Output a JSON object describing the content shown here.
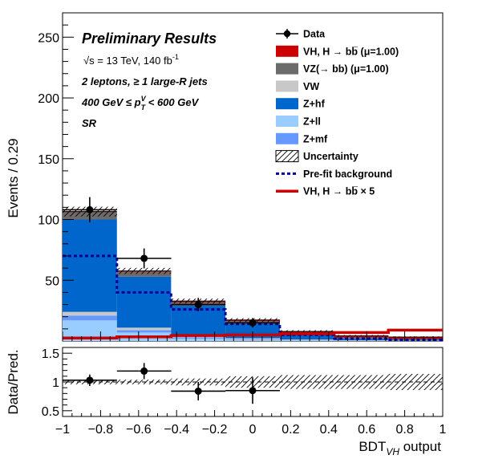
{
  "annotations": {
    "title": "Preliminary Results",
    "energy_prefix": "√s = 13 TeV, 140 fb",
    "energy_sup": "-1",
    "selection": "2 leptons, ≥ 1 large-R jets",
    "pt_left": "400 GeV  ≤ p",
    "pt_sup": "V",
    "pt_sub": "T",
    "pt_right": " < 600 GeV",
    "region": "SR"
  },
  "legend": [
    {
      "label": "Data",
      "kind": "data"
    },
    {
      "label": "VH, H  → bb̅  (μ=1.00)",
      "kind": "fill",
      "color": "#cc0000"
    },
    {
      "label": "VZ(→ bb) (μ=1.00)",
      "kind": "fill",
      "color": "#6b6b6b"
    },
    {
      "label": "VW",
      "kind": "fill",
      "color": "#c8c8c8"
    },
    {
      "label": "Z+hf",
      "kind": "fill",
      "color": "#0066cc"
    },
    {
      "label": "Z+ll",
      "kind": "fill",
      "color": "#99ccff"
    },
    {
      "label": "Z+mf",
      "kind": "fill",
      "color": "#6699ff"
    },
    {
      "label": "Uncertainty",
      "kind": "hatch"
    },
    {
      "label": "Pre-fit background",
      "kind": "dashline",
      "color": "#000099"
    },
    {
      "label": "VH, H  → bb̅  × 5",
      "kind": "line",
      "color": "#cc0000"
    }
  ],
  "chart_data": [
    {
      "type": "bar",
      "subtype": "stacked-histogram",
      "xlabel_main": "BDT",
      "xlabel_sub": "VH",
      "xlabel_tail": " output",
      "ylabel": "Events / 0.29",
      "xlim": [
        -1,
        1
      ],
      "ylim": [
        0,
        270
      ],
      "yticks": [
        50,
        100,
        150,
        200,
        250
      ],
      "bin_edges": [
        -1.0,
        -0.714,
        -0.429,
        -0.143,
        0.143,
        0.429,
        0.714,
        1.0
      ],
      "stack_order": [
        "Z+ll",
        "Z+mf",
        "VW",
        "Z+hf",
        "VZ(→ bb)",
        "VH, H → bb̅"
      ],
      "series": [
        {
          "name": "Z+ll",
          "color": "#99ccff",
          "values": [
            17,
            7,
            2,
            0.8,
            0.5,
            0.3,
            0.2
          ]
        },
        {
          "name": "Z+mf",
          "color": "#6699ff",
          "values": [
            4,
            2,
            1,
            0.5,
            0.2,
            0.1,
            0.1
          ]
        },
        {
          "name": "VW",
          "color": "#c8c8c8",
          "values": [
            3,
            2,
            2,
            1,
            0.5,
            0.3,
            0.2
          ]
        },
        {
          "name": "Z+hf",
          "color": "#0066cc",
          "values": [
            76,
            42,
            24,
            12,
            4,
            1.5,
            0.6
          ]
        },
        {
          "name": "VZ(→ bb)",
          "color": "#6b6b6b",
          "values": [
            6,
            4,
            3,
            2,
            1.5,
            0.8,
            0.4
          ]
        },
        {
          "name": "VH, H → bb̅",
          "color": "#cc0000",
          "values": [
            0.5,
            0.7,
            0.9,
            1.0,
            1.2,
            1.4,
            1.8
          ]
        }
      ],
      "uncertainty_halfwidth": [
        4,
        2.5,
        2,
        1.5,
        1,
        0.6,
        0.5
      ],
      "prefit_background": [
        70,
        40,
        26,
        14,
        5,
        2,
        1
      ],
      "signal_x5": [
        2.5,
        3.5,
        4.5,
        5,
        6,
        7,
        9
      ],
      "data": {
        "x": [
          -0.857,
          -0.571,
          -0.286,
          0.0
        ],
        "xerr": [
          0.143,
          0.143,
          0.143,
          0.143
        ],
        "y": [
          108,
          68,
          30,
          15
        ],
        "yerr": [
          10.4,
          8.2,
          5.5,
          3.9
        ]
      }
    },
    {
      "type": "scatter",
      "subtype": "ratio",
      "ylabel": "Data/Pred.",
      "xlim": [
        -1,
        1
      ],
      "ylim": [
        0.4,
        1.6
      ],
      "yticks": [
        0.5,
        1,
        1.5
      ],
      "xticks": [
        -1,
        -0.8,
        -0.6,
        -0.4,
        -0.2,
        0,
        0.2,
        0.4,
        0.6,
        0.8,
        1
      ],
      "xtick_labels": [
        "−1",
        "−0.8",
        "−0.6",
        "−0.4",
        "−0.2",
        "0",
        "0.2",
        "0.4",
        "0.6",
        "0.8",
        "1"
      ],
      "band_halfwidth": [
        0.04,
        0.04,
        0.06,
        0.1,
        0.12,
        0.12,
        0.14
      ],
      "points": {
        "x": [
          -0.857,
          -0.571,
          -0.286,
          0.0
        ],
        "xerr": [
          0.143,
          0.143,
          0.143,
          0.143
        ],
        "y": [
          1.03,
          1.19,
          0.84,
          0.85
        ],
        "yerr": [
          0.1,
          0.14,
          0.16,
          0.23
        ]
      }
    }
  ]
}
